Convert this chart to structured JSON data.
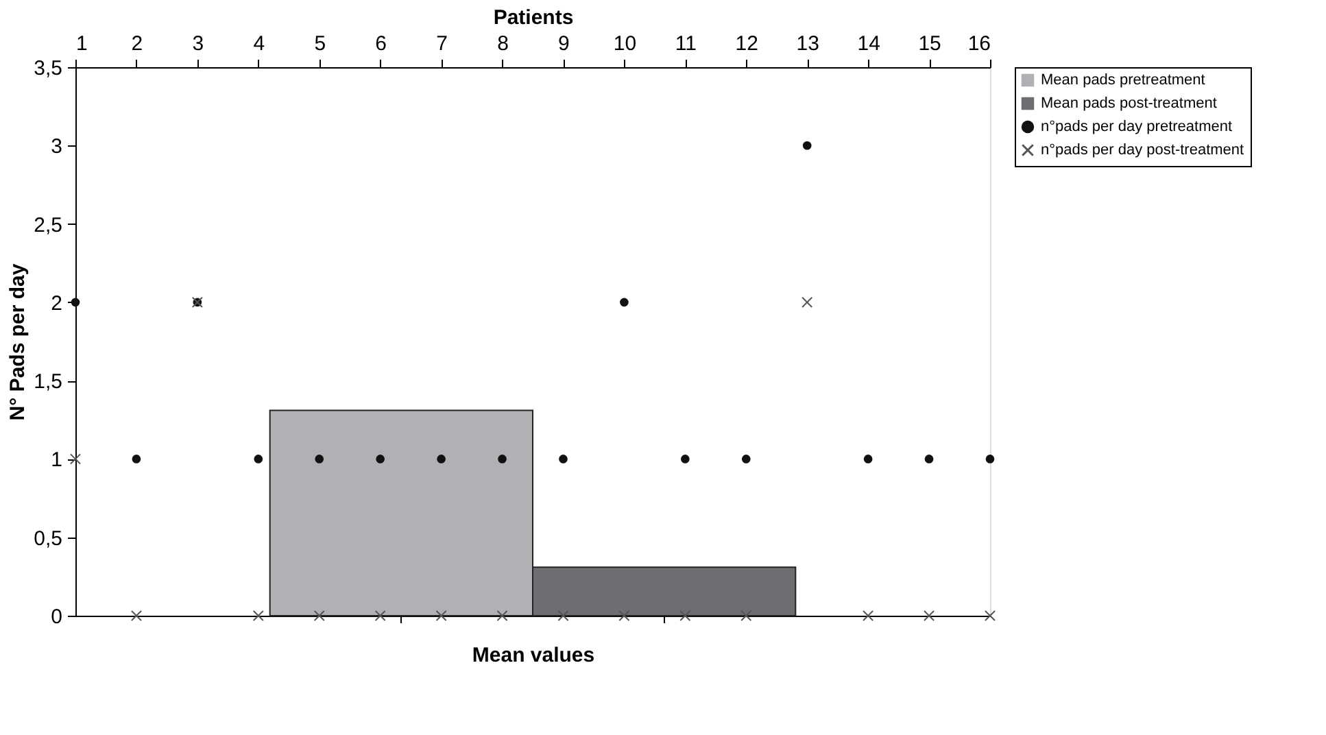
{
  "chart_data": {
    "type": "bar",
    "xlabel": "Mean values",
    "ylabel": "N° Pads per day",
    "x2label": "Patients",
    "categories": [
      null,
      null
    ],
    "series": [
      {
        "name": "Mean pads pretreatment",
        "type": "bar",
        "color": "#b0b1b4",
        "values": [
          1.31,
          null
        ]
      },
      {
        "name": "Mean pads post-treatment",
        "type": "bar",
        "color": "#6d6e72",
        "values": [
          null,
          0.31
        ]
      },
      {
        "name": "n°pads per day pretreatment",
        "type": "scatter",
        "axis": "x2",
        "marker": "circle",
        "color": "#111111",
        "x": [
          1,
          2,
          3,
          4,
          5,
          6,
          7,
          8,
          9,
          10,
          11,
          12,
          13,
          14,
          15,
          16
        ],
        "values": [
          2,
          1,
          2,
          1,
          1,
          1,
          1,
          1,
          1,
          2,
          1,
          1,
          3,
          1,
          1,
          1
        ]
      },
      {
        "name": "n°pads per day post-treatment",
        "type": "scatter",
        "axis": "x2",
        "marker": "cross",
        "color": "#555555",
        "x": [
          1,
          2,
          3,
          4,
          5,
          6,
          7,
          8,
          9,
          10,
          11,
          12,
          13,
          14,
          15,
          16
        ],
        "values": [
          1,
          0,
          2,
          0,
          0,
          0,
          0,
          0,
          0,
          0,
          0,
          0,
          2,
          0,
          0,
          0
        ]
      }
    ],
    "ylim": [
      0,
      3.5
    ],
    "yticks": [
      0,
      {
        "value": 0.5,
        "label": "0,5"
      },
      1,
      {
        "value": 1.5,
        "label": "1,5"
      },
      2,
      {
        "value": 2.5,
        "label": "2,5"
      },
      3,
      {
        "value": 3.5,
        "label": "3,5"
      }
    ],
    "x2lim": [
      1,
      16
    ],
    "x2ticks": [
      1,
      2,
      3,
      4,
      5,
      6,
      7,
      8,
      9,
      10,
      11,
      12,
      13,
      14,
      15,
      16
    ],
    "grid": false,
    "legend": "right"
  }
}
